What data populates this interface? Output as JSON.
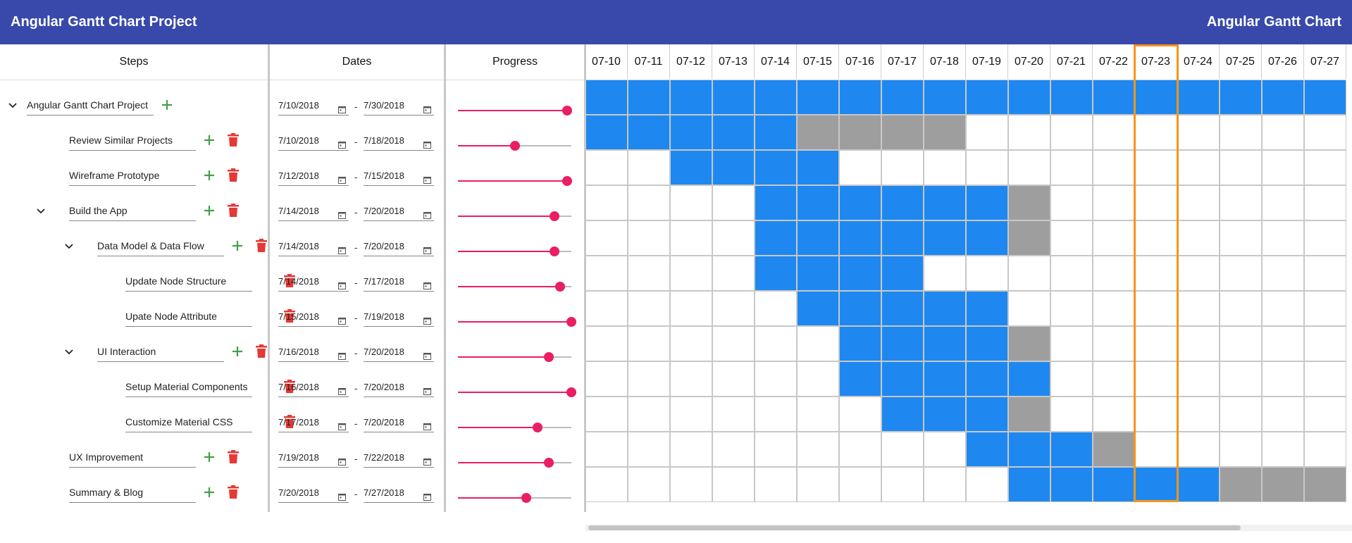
{
  "header": {
    "title": "Angular Gantt Chart Project",
    "brand": "Angular Gantt Chart"
  },
  "columns": {
    "steps": "Steps",
    "dates": "Dates",
    "progress": "Progress"
  },
  "colors": {
    "header": "#3949ab",
    "bar_blue": "#1e88f0",
    "bar_grey": "#9e9e9e",
    "today": "#f7941d",
    "slider": "#e91e63",
    "add": "#43a047",
    "delete": "#e53935"
  },
  "timeline": {
    "days": [
      "07-10",
      "07-11",
      "07-12",
      "07-13",
      "07-14",
      "07-15",
      "07-16",
      "07-17",
      "07-18",
      "07-19",
      "07-20",
      "07-21",
      "07-22",
      "07-23",
      "07-24",
      "07-25",
      "07-26",
      "07-27"
    ],
    "today": "07-23"
  },
  "tasks": [
    {
      "name": "Angular Gantt Chart Project",
      "level": 0,
      "expandable": true,
      "add": true,
      "del": false,
      "start": "7/10/2018",
      "end": "7/30/2018",
      "progress": 0.96,
      "blue": [
        0,
        17
      ],
      "grey": []
    },
    {
      "name": "Review Similar Projects",
      "level": 1,
      "expandable": false,
      "add": true,
      "del": true,
      "start": "7/10/2018",
      "end": "7/18/2018",
      "progress": 0.5,
      "blue": [
        0,
        4
      ],
      "grey": [
        5,
        8
      ]
    },
    {
      "name": "Wireframe Prototype",
      "level": 1,
      "expandable": false,
      "add": true,
      "del": true,
      "start": "7/12/2018",
      "end": "7/15/2018",
      "progress": 0.96,
      "blue": [
        2,
        5
      ],
      "grey": []
    },
    {
      "name": "Build the App",
      "level": 1,
      "expandable": true,
      "add": true,
      "del": true,
      "start": "7/14/2018",
      "end": "7/20/2018",
      "progress": 0.85,
      "blue": [
        4,
        9
      ],
      "grey": [
        10,
        10
      ]
    },
    {
      "name": "Data Model & Data Flow",
      "level": 2,
      "expandable": true,
      "add": true,
      "del": true,
      "start": "7/14/2018",
      "end": "7/20/2018",
      "progress": 0.85,
      "blue": [
        4,
        9
      ],
      "grey": [
        10,
        10
      ]
    },
    {
      "name": "Update Node Structure",
      "level": 3,
      "expandable": false,
      "add": false,
      "del": true,
      "start": "7/14/2018",
      "end": "7/17/2018",
      "progress": 0.9,
      "blue": [
        4,
        7
      ],
      "grey": []
    },
    {
      "name": "Upate Node Attribute",
      "level": 3,
      "expandable": false,
      "add": false,
      "del": true,
      "start": "7/15/2018",
      "end": "7/19/2018",
      "progress": 1.0,
      "blue": [
        5,
        9
      ],
      "grey": []
    },
    {
      "name": "UI Interaction",
      "level": 2,
      "expandable": true,
      "add": true,
      "del": true,
      "start": "7/16/2018",
      "end": "7/20/2018",
      "progress": 0.8,
      "blue": [
        6,
        9
      ],
      "grey": [
        10,
        10
      ]
    },
    {
      "name": "Setup Material Components",
      "level": 3,
      "expandable": false,
      "add": false,
      "del": true,
      "start": "7/16/2018",
      "end": "7/20/2018",
      "progress": 1.0,
      "blue": [
        6,
        10
      ],
      "grey": []
    },
    {
      "name": "Customize Material CSS",
      "level": 3,
      "expandable": false,
      "add": false,
      "del": true,
      "start": "7/17/2018",
      "end": "7/20/2018",
      "progress": 0.7,
      "blue": [
        7,
        9
      ],
      "grey": [
        10,
        10
      ]
    },
    {
      "name": "UX Improvement",
      "level": 1,
      "expandable": false,
      "add": true,
      "del": true,
      "start": "7/19/2018",
      "end": "7/22/2018",
      "progress": 0.8,
      "blue": [
        9,
        11
      ],
      "grey": [
        12,
        12
      ]
    },
    {
      "name": "Summary & Blog",
      "level": 1,
      "expandable": false,
      "add": true,
      "del": true,
      "start": "7/20/2018",
      "end": "7/27/2018",
      "progress": 0.6,
      "blue": [
        10,
        14
      ],
      "grey": [
        15,
        17
      ]
    }
  ]
}
